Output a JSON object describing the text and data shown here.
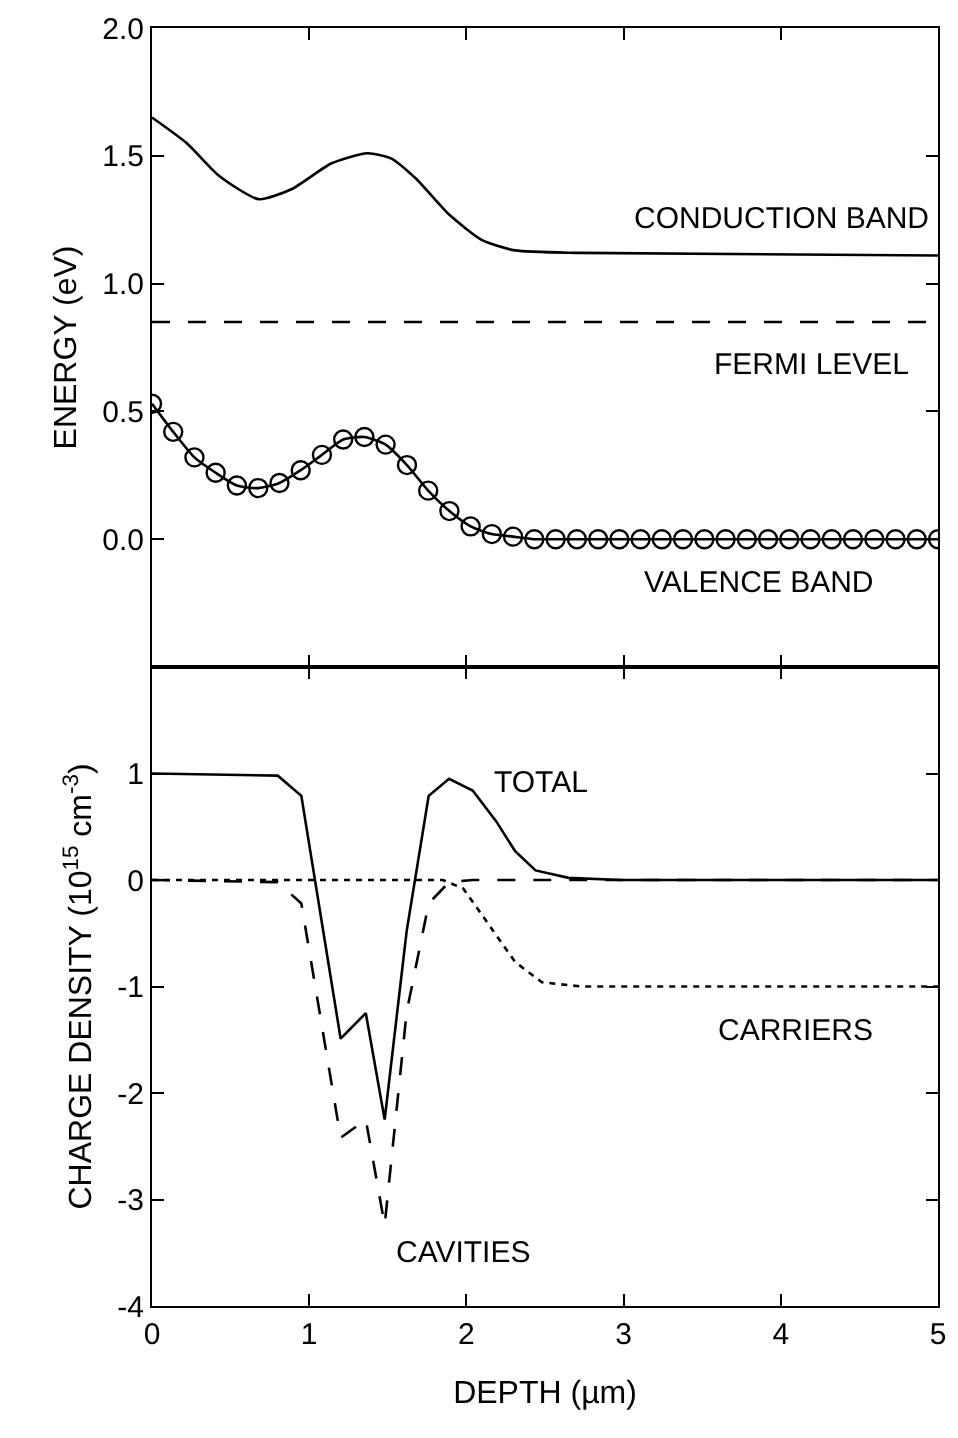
{
  "chart_data": [
    {
      "type": "line",
      "ylabel": "ENERGY (eV)",
      "xlim": [
        0,
        5
      ],
      "xticks": [
        0,
        1,
        2,
        3,
        4,
        5
      ],
      "ylim": [
        -0.5,
        2.0
      ],
      "yticks": [
        {
          "value": 0,
          "label": "0.0"
        },
        {
          "value": 0.5,
          "label": "0.5"
        },
        {
          "value": 1,
          "label": "1.0"
        },
        {
          "value": 1.5,
          "label": "1.5"
        },
        {
          "value": 2,
          "label": "2.0"
        }
      ],
      "tick_labels": "y",
      "legend": false,
      "series": [
        {
          "name": "CONDUCTION BAND",
          "color": "#000000",
          "line_style": "solid",
          "marker": "none",
          "x": [
            0,
            0.22,
            0.43,
            0.68,
            0.89,
            1.14,
            1.37,
            1.52,
            1.68,
            1.89,
            2.1,
            2.31,
            2.73,
            5
          ],
          "values": [
            1.65,
            1.55,
            1.42,
            1.33,
            1.37,
            1.47,
            1.51,
            1.49,
            1.41,
            1.27,
            1.17,
            1.13,
            1.12,
            1.11
          ]
        },
        {
          "name": "VALENCE BAND",
          "color": "#000000",
          "line_style": "solid",
          "marker": "circle",
          "x": [
            0,
            0.135,
            0.27,
            0.405,
            0.54,
            0.676,
            0.811,
            0.946,
            1.081,
            1.216,
            1.351,
            1.486,
            1.622,
            1.757,
            1.892,
            2.027,
            2.162,
            2.297,
            2.432,
            2.568,
            2.703,
            2.838,
            2.973,
            3.108,
            3.243,
            3.378,
            3.514,
            3.649,
            3.784,
            3.919,
            4.054,
            4.189,
            4.324,
            4.459,
            4.595,
            4.73,
            4.865,
            5
          ],
          "values": [
            0.53,
            0.42,
            0.32,
            0.26,
            0.21,
            0.2,
            0.22,
            0.27,
            0.33,
            0.39,
            0.4,
            0.37,
            0.29,
            0.19,
            0.11,
            0.05,
            0.02,
            0.01,
            0,
            0,
            0,
            0,
            0,
            0,
            0,
            0,
            0,
            0,
            0,
            0,
            0,
            0,
            0,
            0,
            0,
            0,
            0,
            0
          ]
        }
      ],
      "ref_lines": [
        {
          "axis": "y",
          "value": 0.85,
          "label": "FERMI LEVEL",
          "color": "#000000",
          "line_style": "dashed"
        }
      ]
    },
    {
      "type": "line",
      "xlabel": "DEPTH (µm)",
      "ylabel": "CHARGE DENSITY (10$^{15}$ cm$^{-3}$)",
      "xlim": [
        0,
        5
      ],
      "xticks": [
        0,
        1,
        2,
        3,
        4,
        5
      ],
      "ylim": [
        -4,
        2
      ],
      "yticks": [
        -4,
        -3,
        -2,
        -1,
        0,
        1
      ],
      "legend": false,
      "series": [
        {
          "name": "TOTAL",
          "color": "#000000",
          "line_style": "solid",
          "marker": "none",
          "x": [
            0,
            0.8,
            0.95,
            1.2,
            1.36,
            1.48,
            1.62,
            1.76,
            1.89,
            2.04,
            2.19,
            2.31,
            2.44,
            2.65,
            2.98,
            5
          ],
          "values": [
            1.0,
            0.98,
            0.79,
            -1.49,
            -1.25,
            -2.25,
            -0.48,
            0.79,
            0.95,
            0.84,
            0.55,
            0.27,
            0.09,
            0.02,
            0,
            0
          ]
        },
        {
          "name": "CAVITIES",
          "color": "#000000",
          "line_style": "dashed",
          "marker": "none",
          "x": [
            0,
            0.8,
            0.95,
            1.2,
            1.36,
            1.48,
            1.62,
            1.76,
            1.89,
            2.04,
            5
          ],
          "values": [
            0,
            -0.02,
            -0.22,
            -2.42,
            -2.25,
            -3.24,
            -1.24,
            -0.22,
            -0.02,
            0,
            0
          ]
        },
        {
          "name": "CARRIERS",
          "color": "#000000",
          "line_style": "dotted",
          "marker": "none",
          "x": [
            0,
            1.85,
            1.98,
            2.1,
            2.31,
            2.48,
            2.73,
            5
          ],
          "values": [
            0,
            0,
            -0.08,
            -0.33,
            -0.77,
            -0.96,
            -1.0,
            -1.0
          ]
        }
      ]
    }
  ]
}
